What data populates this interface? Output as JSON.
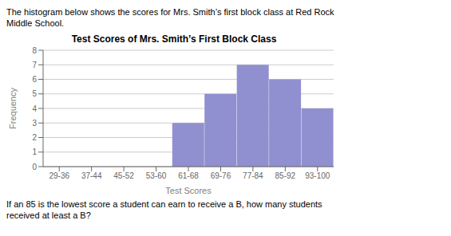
{
  "chart_data": {
    "type": "bar",
    "title": "Test Scores of Mrs. Smith’s First Block Class",
    "x_label": "Test Scores",
    "y_label": "Frequency",
    "categories": [
      "29-36",
      "37-44",
      "45-52",
      "53-60",
      "61-68",
      "69-76",
      "77-84",
      "85-92",
      "93-100"
    ],
    "values": [
      0,
      0,
      0,
      0,
      3,
      5,
      7,
      6,
      4
    ],
    "color": "#9090d0",
    "ylim": [
      0,
      8
    ],
    "yticks": [
      0,
      1,
      2,
      3,
      4,
      5,
      6,
      7,
      8
    ],
    "grid": true,
    "annotations": [
      "The histogram below shows the scores for Mrs. Smith’s first block class at Red Rock\nMiddle School.",
      "If an 85 is the lowest score a student can earn to receive a B, how many students\nreceived at least a B?"
    ]
  }
}
